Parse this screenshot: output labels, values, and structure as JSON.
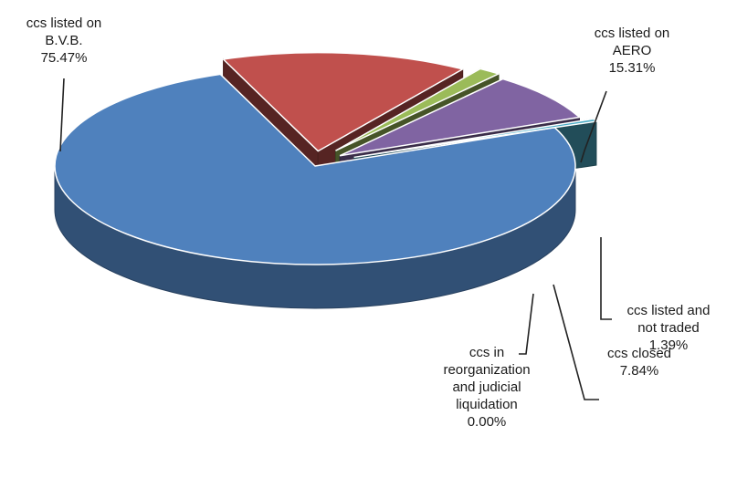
{
  "chart_data": {
    "type": "pie",
    "style": "3d-exploded",
    "slices": [
      {
        "id": "bvb",
        "label_lines": [
          "ccs listed on",
          "B.V.B."
        ],
        "percent_text": "75.47%",
        "value": 75.47,
        "color": "#4f81bd"
      },
      {
        "id": "aero",
        "label_lines": [
          "ccs listed on",
          "AERO"
        ],
        "percent_text": "15.31%",
        "value": 15.31,
        "color": "#c0504d"
      },
      {
        "id": "not_traded",
        "label_lines": [
          "ccs listed and",
          "not traded"
        ],
        "percent_text": "1.39%",
        "value": 1.39,
        "color": "#9bbb59"
      },
      {
        "id": "closed",
        "label_lines": [
          "ccs closed"
        ],
        "percent_text": "7.84%",
        "value": 7.84,
        "color": "#8064a2"
      },
      {
        "id": "reorg",
        "label_lines": [
          "ccs in",
          "reorganization",
          "and judicial",
          "liquidation"
        ],
        "percent_text": "0.00%",
        "value": 0.0,
        "color": "#4bacc6"
      }
    ]
  }
}
